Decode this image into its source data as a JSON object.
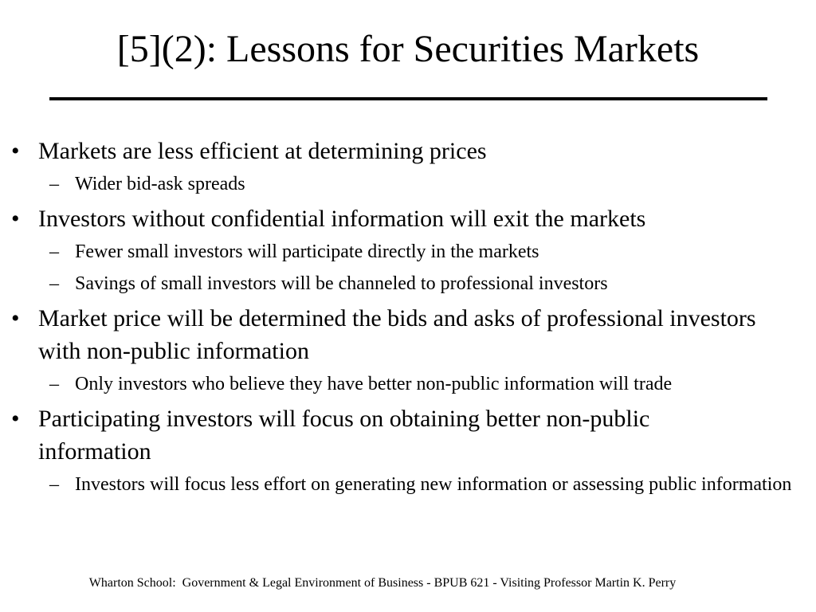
{
  "slide": {
    "title": "[5](2):  Lessons for Securities Markets",
    "bullet_glyph": "•",
    "dash_glyph": "–",
    "bullets": [
      {
        "text": "Markets are less efficient at determining prices",
        "sub": [
          "Wider bid-ask spreads"
        ]
      },
      {
        "text": "Investors without confidential information will exit the markets",
        "sub": [
          "Fewer small investors will participate directly in the markets",
          "Savings of small investors will be channeled to professional investors"
        ]
      },
      {
        "text": "Market price will be determined the bids and asks of professional investors with non-public information",
        "sub": [
          "Only investors who believe they have better non-public information will trade"
        ]
      },
      {
        "text": "Participating investors will focus on obtaining better non-public information",
        "sub": [
          "Investors will focus less effort on generating new information or assessing public information"
        ]
      }
    ],
    "footer": "Wharton School:  Government & Legal Environment of Business - BPUB 621 - Visiting Professor Martin K. Perry"
  }
}
